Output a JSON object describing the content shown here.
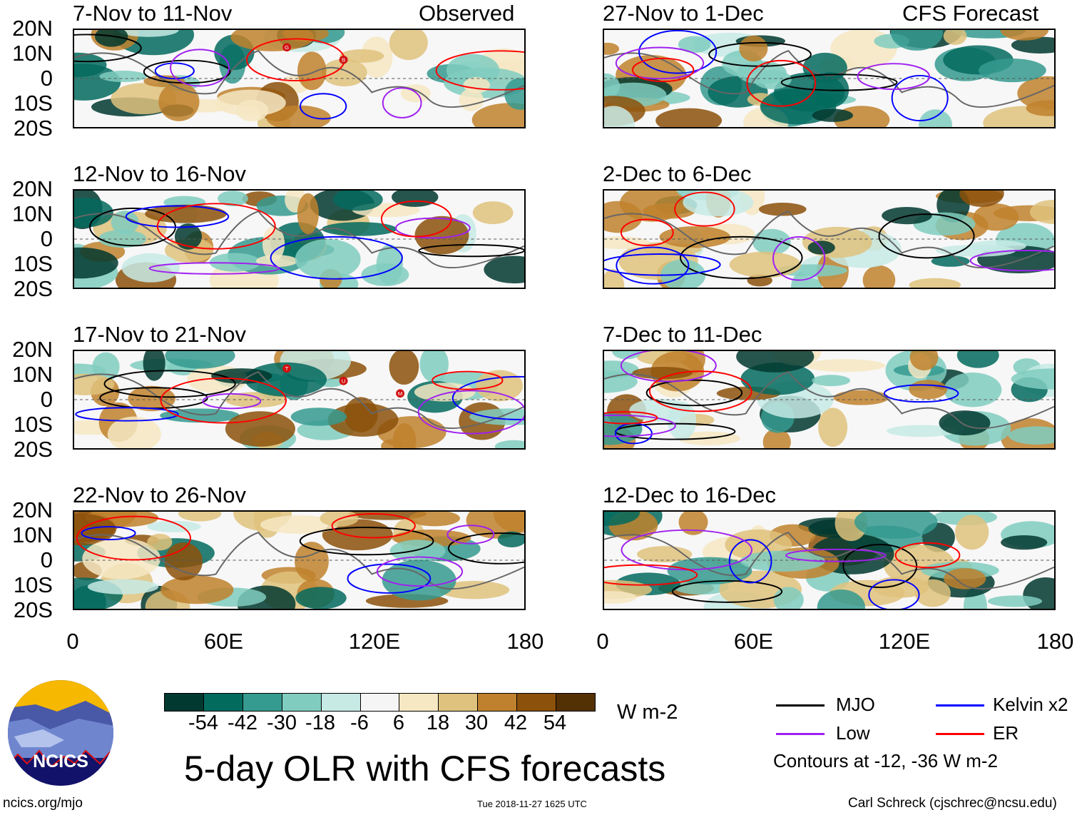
{
  "header": {
    "observed_label": "Observed",
    "forecast_label": "CFS Forecast"
  },
  "panels": [
    {
      "title": "7-Nov to 11-Nov",
      "column": "observed",
      "storms": [
        "G",
        "B"
      ]
    },
    {
      "title": "12-Nov to 16-Nov",
      "column": "observed",
      "storms": []
    },
    {
      "title": "17-Nov to 21-Nov",
      "column": "observed",
      "storms": [
        "T",
        "U",
        "M"
      ]
    },
    {
      "title": "22-Nov to 26-Nov",
      "column": "observed",
      "storms": []
    },
    {
      "title": "27-Nov to 1-Dec",
      "column": "forecast",
      "storms": []
    },
    {
      "title": "2-Dec to 6-Dec",
      "column": "forecast",
      "storms": []
    },
    {
      "title": "7-Dec to 11-Dec",
      "column": "forecast",
      "storms": []
    },
    {
      "title": "12-Dec to 16-Dec",
      "column": "forecast",
      "storms": []
    }
  ],
  "lat_labels": [
    "20N",
    "10N",
    "0",
    "10S",
    "20S"
  ],
  "lon_labels": [
    "0",
    "60E",
    "120E",
    "180"
  ],
  "colorbar": {
    "colors": [
      "#01382f",
      "#036a5e",
      "#359a8f",
      "#80cdc0",
      "#c7eae5",
      "#f5f5f5",
      "#f6e8c3",
      "#dfc27d",
      "#bf812d",
      "#8c510a",
      "#543005"
    ],
    "labels": [
      "-54",
      "-42",
      "-30",
      "-18",
      "-6",
      "6",
      "18",
      "30",
      "42",
      "54"
    ],
    "units": "W m-2"
  },
  "legend": {
    "items": [
      {
        "label": "MJO",
        "color": "#000000"
      },
      {
        "label": "Kelvin x2",
        "color": "#0000ff"
      },
      {
        "label": "Low",
        "color": "#a020f0"
      },
      {
        "label": "ER",
        "color": "#ff0000"
      }
    ],
    "note": "Contours at -12, -36 W m-2"
  },
  "logo": {
    "text": "NCICS"
  },
  "footer": {
    "title": "5-day OLR with CFS forecasts",
    "url": "ncics.org/mjo",
    "timestamp": "Tue 2018-11-27 1625 UTC",
    "credit": "Carl Schreck (cjschrec@ncsu.edu)"
  }
}
